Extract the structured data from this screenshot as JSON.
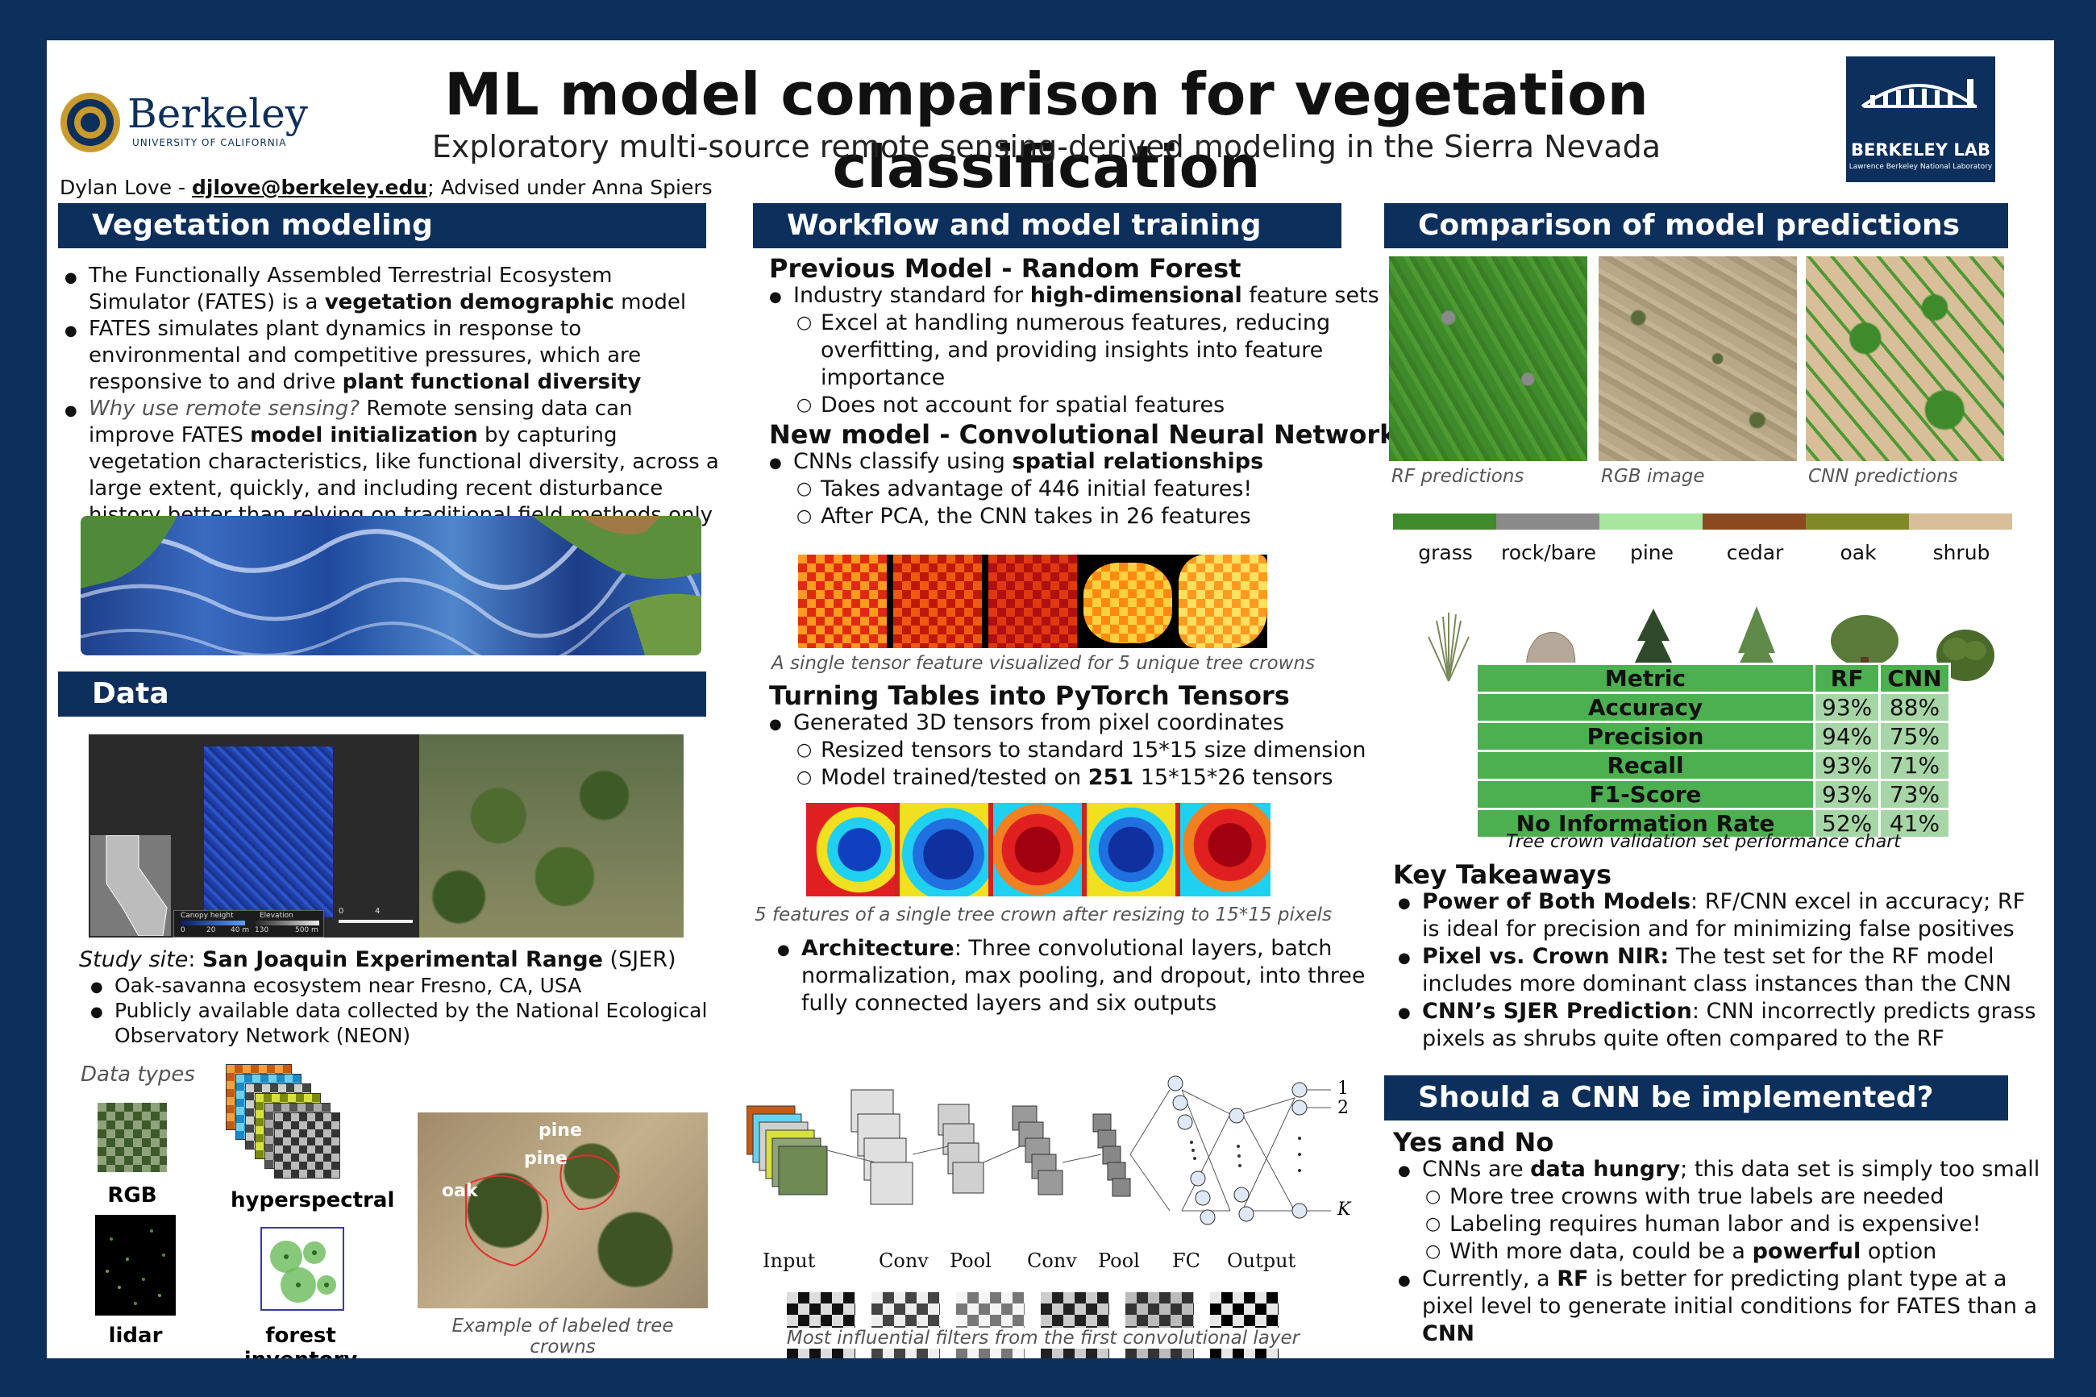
{
  "header": {
    "title": "ML model comparison for vegetation classification",
    "subtitle": "Exploratory multi-source remote sensing-derived modeling in the Sierra Nevada",
    "author_prefix": "Dylan Love - ",
    "email": "djlove@berkeley.edu",
    "author_suffix": "; Advised under Anna Spiers",
    "berkeley_logo_text": "Berkeley",
    "berkeley_logo_sub": "UNIVERSITY OF CALIFORNIA",
    "lab_logo_text": "BERKELEY LAB",
    "lab_logo_sub": "Lawrence Berkeley National Laboratory"
  },
  "veg": {
    "heading": "Vegetation modeling",
    "b1_a": "The Functionally Assembled Terrestrial Ecosystem Simulator (FATES) is a ",
    "b1_bold": "vegetation demographic",
    "b1_b": " model",
    "b2_a": "FATES simulates plant dynamics in response to environmental and competitive pressures, which are responsive to and drive ",
    "b2_bold": "plant functional diversity",
    "b3_italic": "Why use remote sensing?",
    "b3_a": " Remote sensing data can improve FATES ",
    "b3_bold": "model initialization",
    "b3_b": " by capturing vegetation characteristics, like functional diversity, across a large extent, quickly, and including recent disturbance history better than relying on traditional field methods only"
  },
  "data": {
    "heading": "Data",
    "map_legend_1": "Canopy height",
    "map_legend_2": "Elevation",
    "map_legend_3": "0",
    "map_legend_4": "20",
    "map_legend_5": "40 m",
    "map_legend_6": "130",
    "map_legend_7": "500 m",
    "scale_0": "0",
    "scale_4": "4",
    "site_label": "Study site",
    "site_colon": ": ",
    "site_name": "San Joaquin Experimental Range",
    "site_abbr": " (SJER)",
    "d1": "Oak-savanna ecosystem near Fresno, CA, USA",
    "d2": "Publicly available data collected by the National Ecological Observatory Network (NEON)",
    "types_label": "Data types",
    "t_rgb": "RGB",
    "t_hyper": "hyperspectral",
    "t_lidar": "lidar",
    "t_forest": "forest inventory",
    "crown_pine1": "pine",
    "crown_pine2": "pine",
    "crown_oak": "oak",
    "crown_caption": "Example of labeled tree crowns"
  },
  "workflow": {
    "heading": "Workflow and model training",
    "rf_title": "Previous Model - Random Forest",
    "rf_b1_a": "Industry standard for ",
    "rf_b1_bold": "high-dimensional",
    "rf_b1_b": " feature sets",
    "rf_c1": "Excel at handling numerous features, reducing overfitting, and providing insights into feature importance",
    "rf_c2": "Does not account for spatial features",
    "cnn_title": "New model - Convolutional Neural Network",
    "cnn_b1_a": "CNNs classify using ",
    "cnn_b1_bold": "spatial relationships",
    "cnn_c1": "Takes advantage of 446 initial features!",
    "cnn_c2": "After PCA, the CNN takes in 26 features",
    "tensor_caption": "A single tensor feature visualized for 5 unique tree crowns",
    "tt_title": "Turning Tables into PyTorch Tensors",
    "tt_b1": "Generated 3D tensors from pixel coordinates",
    "tt_c1": "Resized tensors to standard 15*15 size dimension",
    "tt_c2_a": "Model trained/tested on ",
    "tt_c2_bold": "251",
    "tt_c2_b": " 15*15*26 tensors",
    "resize_caption": "5 features of a single tree crown after resizing to 15*15 pixels",
    "arch_bold": "Architecture",
    "arch_text": ": Three convolutional layers, batch normalization, max pooling, and dropout, into three fully connected layers and six outputs",
    "net_labels": [
      "Input",
      "Conv",
      "Pool",
      "Conv",
      "Pool",
      "FC",
      "Output"
    ],
    "out_1": "1",
    "out_2": "2",
    "out_k": "K",
    "filters_caption": "Most influential filters from the first convolutional layer"
  },
  "comparison": {
    "heading": "Comparison of model predictions",
    "cap_rf": "RF predictions",
    "cap_rgb": "RGB image",
    "cap_cnn": "CNN predictions",
    "classes": [
      {
        "name": "grass",
        "color": "#3f8a2a"
      },
      {
        "name": "rock/bare",
        "color": "#8a8a8a"
      },
      {
        "name": "pine",
        "color": "#a8e6a0"
      },
      {
        "name": "cedar",
        "color": "#8b4a1e"
      },
      {
        "name": "oak",
        "color": "#7e8a25"
      },
      {
        "name": "shrub",
        "color": "#d8bf9a"
      }
    ],
    "table_head": [
      "Metric",
      "RF",
      "CNN"
    ],
    "table_rows": [
      [
        "Accuracy",
        "93%",
        "88%"
      ],
      [
        "Precision",
        "94%",
        "75%"
      ],
      [
        "Recall",
        "93%",
        "71%"
      ],
      [
        "F1-Score",
        "93%",
        "73%"
      ],
      [
        "No Information Rate",
        "52%",
        "41%"
      ]
    ],
    "table_caption": "Tree crown validation set performance chart",
    "kt_title": "Key Takeaways",
    "kt1_bold": "Power of Both Models",
    "kt1": ": RF/CNN excel in accuracy; RF is ideal for precision and for minimizing false positives",
    "kt2_bold": "Pixel vs. Crown NIR:",
    "kt2": " The test set for the RF model includes more dominant class instances than the CNN",
    "kt3_bold": "CNN’s SJER Prediction",
    "kt3": ": CNN incorrectly predicts grass pixels as shrubs quite often compared to the RF"
  },
  "conclusion": {
    "heading": "Should a CNN be implemented?",
    "yn": "Yes and No",
    "b1_a": "CNNs are ",
    "b1_bold": "data hungry",
    "b1_b": "; this data set is simply too small",
    "c1": "More tree crowns with true labels are needed",
    "c2": "Labeling requires human labor and is expensive!",
    "c3_a": "With more data, could be a ",
    "c3_bold": "powerful",
    "c3_b": " option",
    "b2_a": "Currently, a ",
    "b2_bold1": "RF",
    "b2_b": " is better for predicting plant type at a pixel level to generate initial conditions for FATES than a ",
    "b2_bold2": "CNN"
  }
}
